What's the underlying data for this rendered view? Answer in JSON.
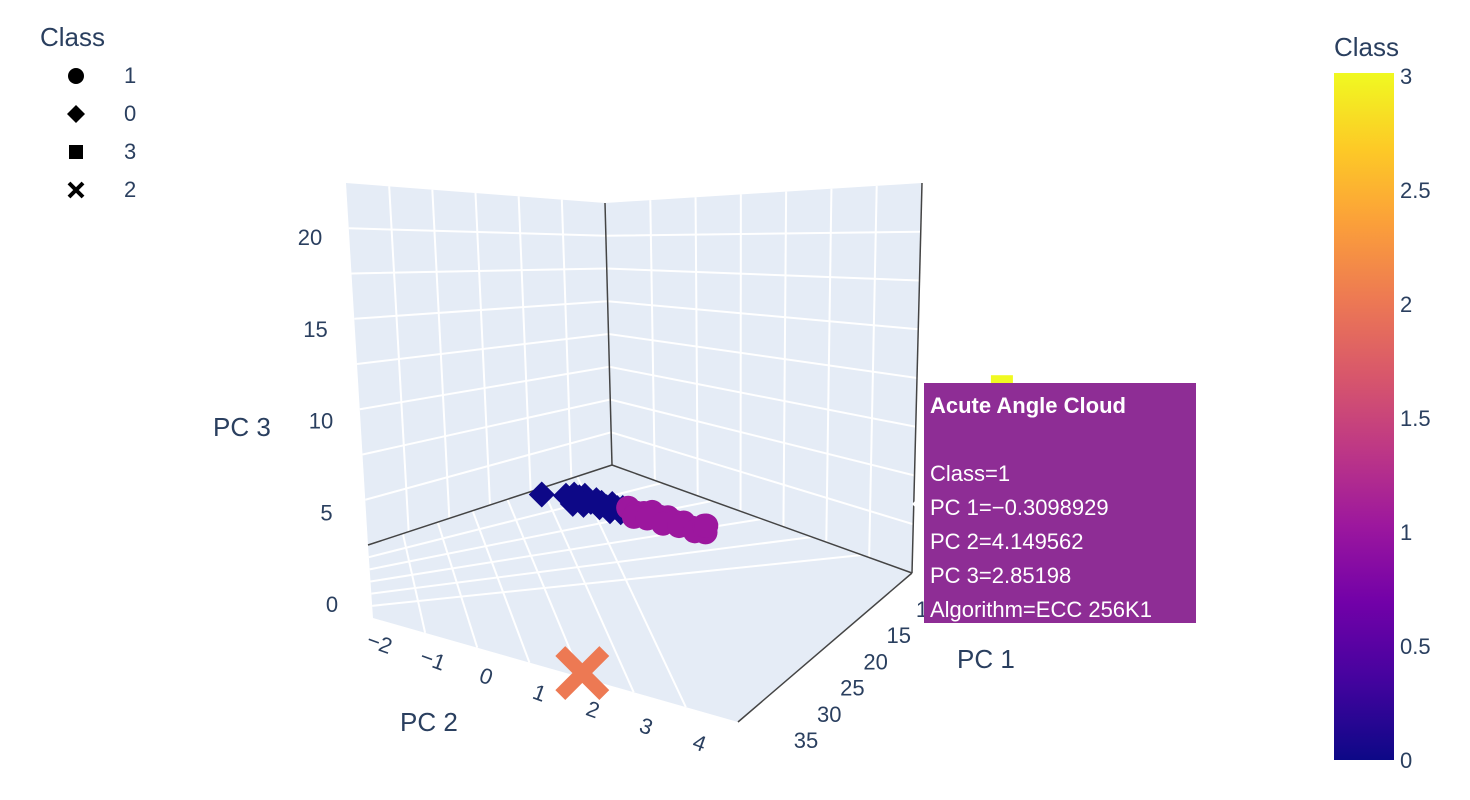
{
  "legend": {
    "title": "Class",
    "items": [
      {
        "label": "1",
        "symbol": "circle"
      },
      {
        "label": "0",
        "symbol": "diamond"
      },
      {
        "label": "3",
        "symbol": "square"
      },
      {
        "label": "2",
        "symbol": "x"
      }
    ]
  },
  "colorbar": {
    "title": "Class",
    "ticks": [
      "3",
      "2.5",
      "2",
      "1.5",
      "1",
      "0.5",
      "0"
    ],
    "colors": [
      "#0d0887",
      "#46039f",
      "#7201a8",
      "#9c179e",
      "#bd3786",
      "#d8576b",
      "#ed7953",
      "#fb9f3a",
      "#fdca26",
      "#f0f921"
    ]
  },
  "tooltip": {
    "title": "Acute Angle Cloud",
    "lines": [
      "Class=1",
      "PC 1=−0.3098929",
      "PC 2=4.149562",
      "PC 3=2.85198",
      "Algorithm=ECC 256K1"
    ],
    "color": "#8e2d95"
  },
  "chart_data": {
    "type": "scatter",
    "title": "",
    "x_axis": {
      "label": "PC 1",
      "ticks": [
        "1",
        "15",
        "20",
        "25",
        "30",
        "35"
      ]
    },
    "y_axis": {
      "label": "PC 2",
      "ticks": [
        "−2",
        "−1",
        "0",
        "1",
        "2",
        "3",
        "4"
      ]
    },
    "z_axis": {
      "label": "PC 3",
      "ticks": [
        "0",
        "5",
        "10",
        "15",
        "20"
      ],
      "range": [
        0,
        22
      ]
    },
    "background": "#e5ecf6",
    "series": [
      {
        "name": "0",
        "symbol": "diamond",
        "color": "#0d0887",
        "points": [
          [
            -0.4,
            -2.0,
            2.3
          ],
          [
            -0.4,
            -1.1,
            2.6
          ],
          [
            -0.4,
            -0.8,
            2.8
          ],
          [
            -0.4,
            -0.6,
            2.7
          ],
          [
            -0.4,
            -0.4,
            2.9
          ],
          [
            -0.3,
            -0.2,
            2.6
          ],
          [
            -0.3,
            0.0,
            2.8
          ],
          [
            -0.3,
            0.2,
            2.7
          ],
          [
            -0.3,
            0.4,
            2.5
          ],
          [
            -0.3,
            0.6,
            2.8
          ],
          [
            -0.3,
            0.8,
            2.6
          ],
          [
            -0.3,
            1.0,
            2.7
          ],
          [
            -0.2,
            -0.9,
            2.2
          ],
          [
            -0.2,
            -0.5,
            2.3
          ],
          [
            -0.2,
            0.1,
            2.4
          ],
          [
            -0.2,
            0.5,
            2.3
          ],
          [
            -0.2,
            0.9,
            2.4
          ]
        ]
      },
      {
        "name": "1",
        "symbol": "circle",
        "color": "#9c179e",
        "points": [
          [
            -0.3,
            1.2,
            2.8
          ],
          [
            -0.3,
            1.5,
            2.6
          ],
          [
            -0.3,
            1.8,
            2.7
          ],
          [
            -0.3,
            2.1,
            2.9
          ],
          [
            -0.3,
            2.4,
            2.7
          ],
          [
            -0.3,
            2.7,
            2.8
          ],
          [
            -0.3,
            3.0,
            2.6
          ],
          [
            -0.3,
            3.3,
            2.7
          ],
          [
            -0.2,
            3.6,
            2.5
          ],
          [
            -0.2,
            3.9,
            2.6
          ],
          [
            -0.2,
            1.4,
            2.3
          ],
          [
            -0.2,
            1.9,
            2.4
          ],
          [
            -0.2,
            2.5,
            2.3
          ],
          [
            -0.2,
            3.1,
            2.4
          ],
          [
            -0.2,
            3.7,
            2.3
          ],
          [
            -0.2,
            4.1,
            2.4
          ],
          [
            3.0,
            2.8,
            3.3
          ],
          [
            -0.31,
            4.15,
            2.85
          ]
        ]
      },
      {
        "name": "3",
        "symbol": "square",
        "color": "#f0f921",
        "points": [
          [
            34.0,
            1.5,
            21.8
          ],
          [
            34.0,
            1.6,
            18.6
          ],
          [
            34.0,
            1.6,
            10.3
          ],
          [
            34.0,
            1.7,
            9.2
          ]
        ]
      },
      {
        "name": "2",
        "symbol": "x",
        "color": "#ed7953",
        "points": [
          [
            2.3,
            -1.0,
            -8.5
          ]
        ]
      }
    ]
  }
}
